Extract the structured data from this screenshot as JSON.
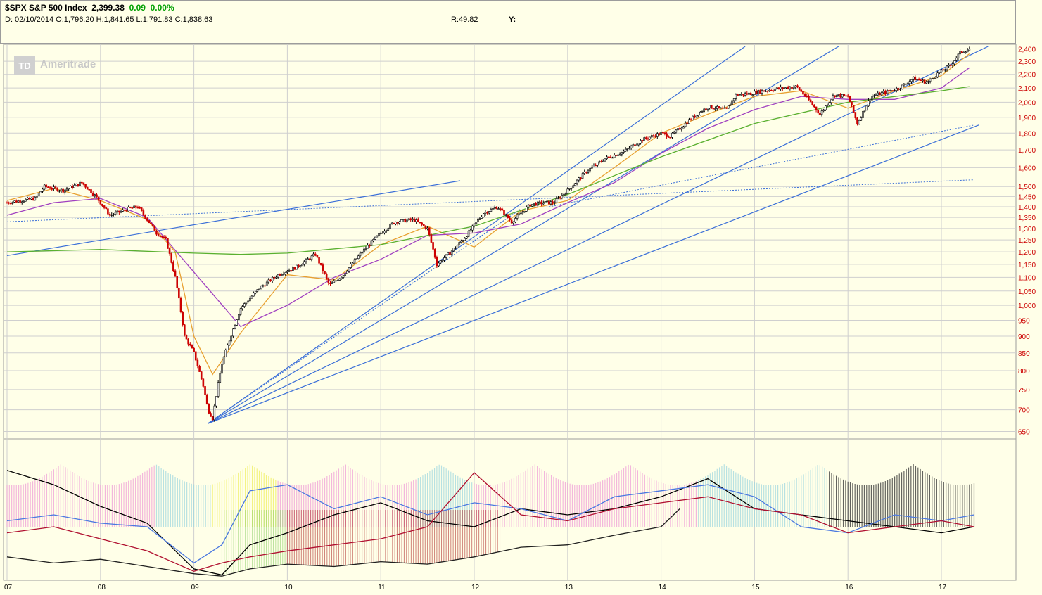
{
  "header": {
    "symbol_line": "$SPX S&P 500 Index",
    "last_price": "2,399.38",
    "change": "0.09",
    "change_pct": "0.00%",
    "ohlc_line": "D: 02/10/2014 O:1,796.20 H:1,841.65 L:1,791.83 C:1,838.63",
    "r_value": "R:49.82",
    "y_value": "Y:"
  },
  "watermark": {
    "logo_text": "TD",
    "brand": "Ameritrade"
  },
  "colors": {
    "background": "#ffffe8",
    "up_candle": "#000000",
    "down_candle": "#cc0000",
    "trendline": "#3b6fd8",
    "ma_short": "#e8a030",
    "ma_mid": "#a040c0",
    "ma_long": "#5ab030",
    "price_axis_text": "#cc0000"
  },
  "chart_data": [
    {
      "type": "line",
      "subtype": "candlestick",
      "scale": "log",
      "ylim": [
        640,
        2420
      ],
      "y_ticks": [
        "2,400",
        "2,300",
        "2,200",
        "2,100",
        "2,000",
        "1,900",
        "1,800",
        "1,700",
        "1,600",
        "1,500",
        "1,450",
        "1,400",
        "1,350",
        "1,300",
        "1,250",
        "1,200",
        "1,150",
        "1,100",
        "1,050",
        "1,000",
        "950",
        "900",
        "850",
        "800",
        "750",
        "700",
        "650"
      ],
      "y_tick_values": [
        2400,
        2300,
        2200,
        2100,
        2000,
        1900,
        1800,
        1700,
        1600,
        1500,
        1450,
        1400,
        1350,
        1300,
        1250,
        1200,
        1150,
        1100,
        1050,
        1000,
        950,
        900,
        850,
        800,
        750,
        700,
        650
      ],
      "x_ticks": [
        "07",
        "08",
        "09",
        "10",
        "11",
        "12",
        "13",
        "14",
        "15",
        "16",
        "17"
      ],
      "x_tick_values": [
        2007,
        2008,
        2009,
        2010,
        2011,
        2012,
        2013,
        2014,
        2015,
        2016,
        2017
      ],
      "xlim": [
        2007.0,
        2017.4
      ],
      "grid": true,
      "series": [
        {
          "key": "price",
          "x": [
            2007.0,
            2007.3,
            2007.4,
            2007.6,
            2007.8,
            2007.95,
            2008.1,
            2008.3,
            2008.4,
            2008.6,
            2008.7,
            2008.8,
            2008.9,
            2009.0,
            2009.1,
            2009.15,
            2009.2,
            2009.3,
            2009.5,
            2009.7,
            2009.9,
            2010.1,
            2010.3,
            2010.45,
            2010.6,
            2010.8,
            2011.0,
            2011.15,
            2011.35,
            2011.5,
            2011.6,
            2011.75,
            2011.9,
            2012.1,
            2012.25,
            2012.4,
            2012.6,
            2012.75,
            2012.85,
            2013.0,
            2013.2,
            2013.4,
            2013.6,
            2013.8,
            2014.0,
            2014.1,
            2014.3,
            2014.5,
            2014.7,
            2014.8,
            2014.95,
            2015.1,
            2015.3,
            2015.45,
            2015.6,
            2015.7,
            2015.85,
            2016.0,
            2016.1,
            2016.25,
            2016.4,
            2016.55,
            2016.7,
            2016.85,
            2016.95,
            2017.1,
            2017.2,
            2017.3
          ],
          "y": [
            1420,
            1440,
            1500,
            1480,
            1520,
            1450,
            1360,
            1390,
            1400,
            1280,
            1250,
            1100,
            900,
            850,
            760,
            700,
            680,
            820,
            990,
            1060,
            1110,
            1140,
            1190,
            1070,
            1110,
            1200,
            1280,
            1330,
            1340,
            1300,
            1150,
            1200,
            1260,
            1370,
            1400,
            1330,
            1410,
            1420,
            1420,
            1480,
            1580,
            1650,
            1690,
            1760,
            1800,
            1780,
            1880,
            1970,
            1950,
            2050,
            2060,
            2080,
            2100,
            2110,
            2000,
            1920,
            2050,
            2040,
            1860,
            2040,
            2070,
            2100,
            2170,
            2140,
            2200,
            2270,
            2370,
            2399
          ]
        },
        {
          "key": "ma50",
          "x": [
            2007.0,
            2007.5,
            2008.0,
            2008.5,
            2008.8,
            2009.0,
            2009.2,
            2009.5,
            2010.0,
            2010.5,
            2011.0,
            2011.5,
            2012.0,
            2012.5,
            2013.0,
            2013.5,
            2014.0,
            2014.5,
            2015.0,
            2015.5,
            2016.0,
            2016.5,
            2017.0,
            2017.3
          ],
          "y": [
            1430,
            1490,
            1430,
            1340,
            1200,
            900,
            790,
            910,
            1110,
            1090,
            1230,
            1310,
            1220,
            1380,
            1430,
            1600,
            1800,
            1920,
            2040,
            2080,
            1960,
            2080,
            2190,
            2360
          ]
        },
        {
          "key": "ma200",
          "x": [
            2007.0,
            2007.5,
            2008.0,
            2008.5,
            2009.0,
            2009.5,
            2010.0,
            2010.5,
            2011.0,
            2011.5,
            2012.0,
            2012.5,
            2013.0,
            2013.5,
            2014.0,
            2014.5,
            2015.0,
            2015.5,
            2016.0,
            2016.5,
            2017.0,
            2017.3
          ],
          "y": [
            1360,
            1420,
            1440,
            1350,
            1120,
            930,
            1000,
            1100,
            1170,
            1270,
            1280,
            1320,
            1420,
            1520,
            1680,
            1830,
            1950,
            2040,
            2020,
            2020,
            2100,
            2250
          ]
        },
        {
          "key": "ma_long",
          "x": [
            2007.0,
            2008.0,
            2009.0,
            2009.5,
            2010.0,
            2011.0,
            2012.0,
            2013.0,
            2014.0,
            2015.0,
            2016.0,
            2017.0,
            2017.3
          ],
          "y": [
            1200,
            1210,
            1195,
            1190,
            1195,
            1230,
            1310,
            1460,
            1660,
            1860,
            2000,
            2080,
            2110
          ]
        }
      ]
    },
    {
      "type": "area",
      "subtype": "oscillator-panel",
      "grid": true,
      "series": [
        {
          "key": "osc_black",
          "x": [
            2007.0,
            2007.5,
            2008.0,
            2008.5,
            2009.0,
            2009.3,
            2009.6,
            2010.0,
            2010.5,
            2011.0,
            2011.5,
            2012.0,
            2012.5,
            2013.0,
            2013.5,
            2014.0,
            2014.5,
            2015.0,
            2015.5,
            2016.0,
            2016.5,
            2017.0,
            2017.35
          ],
          "y": [
            92,
            80,
            62,
            48,
            10,
            5,
            30,
            40,
            55,
            65,
            50,
            45,
            60,
            55,
            60,
            70,
            85,
            60,
            55,
            50,
            45,
            40,
            45
          ]
        },
        {
          "key": "osc_blue",
          "x": [
            2007.0,
            2007.5,
            2008.0,
            2008.5,
            2009.0,
            2009.3,
            2009.6,
            2010.0,
            2010.5,
            2011.0,
            2011.5,
            2012.0,
            2012.5,
            2013.0,
            2013.5,
            2014.0,
            2014.5,
            2015.0,
            2015.5,
            2016.0,
            2016.5,
            2017.0,
            2017.35
          ],
          "y": [
            50,
            55,
            48,
            45,
            15,
            30,
            75,
            80,
            60,
            70,
            55,
            65,
            60,
            50,
            70,
            75,
            80,
            70,
            45,
            40,
            55,
            50,
            55
          ]
        },
        {
          "key": "osc_red",
          "x": [
            2007.0,
            2007.5,
            2008.0,
            2008.5,
            2009.0,
            2009.3,
            2009.6,
            2010.0,
            2010.5,
            2011.0,
            2011.5,
            2012.0,
            2012.5,
            2013.0,
            2013.5,
            2014.0,
            2014.5,
            2015.0,
            2015.5,
            2016.0,
            2016.5,
            2017.0,
            2017.35
          ],
          "y": [
            40,
            45,
            35,
            25,
            8,
            15,
            20,
            25,
            30,
            35,
            45,
            90,
            55,
            50,
            60,
            65,
            70,
            60,
            55,
            40,
            45,
            50,
            45
          ]
        },
        {
          "key": "osc_trend",
          "x": [
            2007.0,
            2007.5,
            2008.0,
            2008.5,
            2009.0,
            2009.3,
            2009.6,
            2010.0,
            2010.5,
            2011.0,
            2011.5,
            2012.0,
            2012.5,
            2013.0,
            2013.5,
            2014.0,
            2014.2
          ],
          "y": [
            20,
            15,
            18,
            12,
            6,
            4,
            10,
            14,
            12,
            16,
            14,
            20,
            28,
            30,
            38,
            45,
            60
          ]
        }
      ]
    }
  ]
}
